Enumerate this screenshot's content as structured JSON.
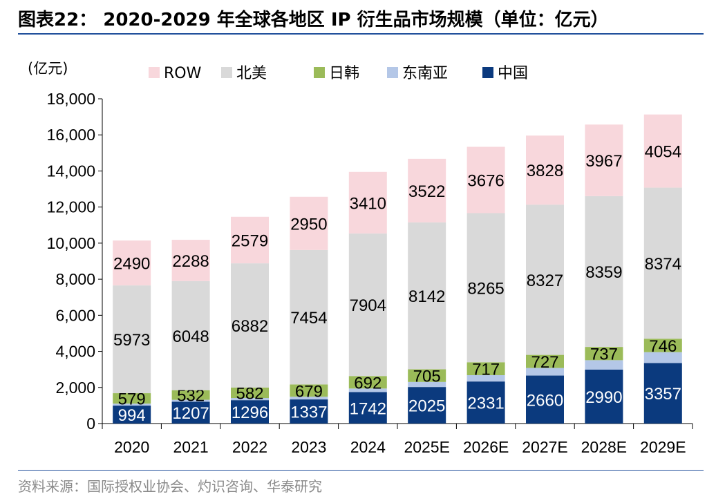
{
  "title": "图表22：  2020-2029 年全球各地区 IP 衍生品市场规模（单位：亿元）",
  "source": "资料来源：国际授权业协会、灼识咨询、华泰研究",
  "chart_data": {
    "type": "bar",
    "stacked": true,
    "unit_label": "(亿元)",
    "categories": [
      "2020",
      "2021",
      "2022",
      "2023",
      "2024",
      "2025E",
      "2026E",
      "2027E",
      "2028E",
      "2029E"
    ],
    "ylim": [
      0,
      18000
    ],
    "yticks": [
      "0",
      "2,000",
      "4,000",
      "6,000",
      "8,000",
      "10,000",
      "12,000",
      "14,000",
      "16,000",
      "18,000"
    ],
    "ytick_values": [
      0,
      2000,
      4000,
      6000,
      8000,
      10000,
      12000,
      14000,
      16000,
      18000
    ],
    "legend_position": "top",
    "legend_order": [
      "ROW",
      "北美",
      "日韩",
      "东南亚",
      "中国"
    ],
    "series": [
      {
        "name": "中国",
        "color": "#0b3a7e",
        "label_color": "#ffffff",
        "show_labels": true,
        "values": [
          994,
          1207,
          1296,
          1337,
          1742,
          2025,
          2331,
          2660,
          2990,
          3357
        ]
      },
      {
        "name": "东南亚",
        "color": "#b4c7e7",
        "label_color": "#000000",
        "show_labels": false,
        "values": [
          110,
          110,
          120,
          150,
          200,
          280,
          350,
          420,
          520,
          600
        ]
      },
      {
        "name": "日韩",
        "color": "#9bbb59",
        "label_color": "#000000",
        "show_labels": true,
        "values": [
          579,
          532,
          582,
          679,
          692,
          705,
          717,
          727,
          737,
          746
        ]
      },
      {
        "name": "北美",
        "color": "#d9d9d9",
        "label_color": "#000000",
        "show_labels": true,
        "values": [
          5973,
          6048,
          6882,
          7454,
          7904,
          8142,
          8265,
          8327,
          8359,
          8374
        ]
      },
      {
        "name": "ROW",
        "color": "#f8d7dc",
        "label_color": "#000000",
        "show_labels": true,
        "values": [
          2490,
          2288,
          2579,
          2950,
          3410,
          3522,
          3676,
          3828,
          3967,
          4054
        ]
      }
    ]
  }
}
